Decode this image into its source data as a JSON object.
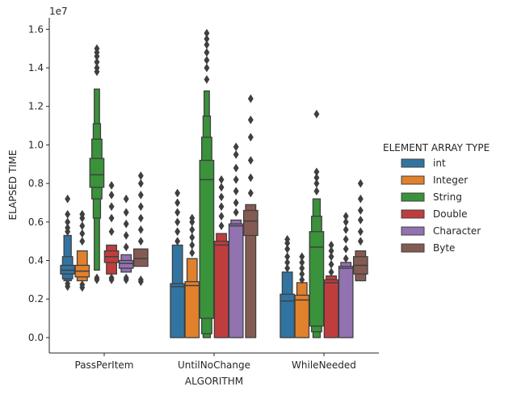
{
  "chart_data": {
    "type": "boxen",
    "title": "",
    "xlabel": "ALGORITHM",
    "ylabel": "ELAPSED TIME",
    "y_scale_label": "1e7",
    "ylim": [
      -0.08,
      1.66
    ],
    "y_ticks": [
      0.0,
      0.2,
      0.4,
      0.6,
      0.8,
      1.0,
      1.2,
      1.4,
      1.6
    ],
    "y_tick_labels": [
      "0.0",
      "0.2",
      "0.4",
      "0.6",
      "0.8",
      "1.0",
      "1.2",
      "1.4",
      "1.6"
    ],
    "categories": [
      "PassPerItem",
      "UntilNoChange",
      "WhileNeeded"
    ],
    "legend": {
      "title": "ELEMENT ARRAY TYPE",
      "placement": "right"
    },
    "grid": false,
    "series": [
      {
        "name": "int",
        "color": "#3274a1",
        "groups": [
          {
            "levels": [
              [
                3.3,
                3.75
              ],
              [
                3.05,
                4.2
              ],
              [
                2.95,
                5.3
              ]
            ],
            "median": 3.5,
            "outliers": [
              2.65,
              2.8,
              5.5,
              5.7,
              6.0,
              6.4,
              7.2
            ]
          },
          {
            "levels": [
              [
                0.0,
                2.8
              ],
              [
                0.0,
                4.8
              ]
            ],
            "median": 2.65,
            "outliers": [
              5.0,
              5.5,
              6.0,
              6.5,
              7.0,
              7.5
            ]
          },
          {
            "levels": [
              [
                0.0,
                2.25
              ],
              [
                0.0,
                3.4
              ]
            ],
            "median": 1.9,
            "outliers": [
              3.6,
              3.9,
              4.2,
              4.6,
              4.9,
              5.1
            ]
          }
        ]
      },
      {
        "name": "Integer",
        "color": "#e1812c",
        "groups": [
          {
            "levels": [
              [
                3.15,
                3.75
              ],
              [
                2.95,
                4.5
              ]
            ],
            "median": 3.45,
            "outliers": [
              2.6,
              2.75,
              5.0,
              5.4,
              5.8,
              6.2,
              6.4
            ]
          },
          {
            "levels": [
              [
                0.0,
                2.9
              ],
              [
                0.0,
                4.1
              ]
            ],
            "median": 2.7,
            "outliers": [
              4.4,
              4.8,
              5.2,
              5.6,
              6.0,
              6.2
            ]
          },
          {
            "levels": [
              [
                0.0,
                2.2
              ],
              [
                0.0,
                2.85
              ]
            ],
            "median": 1.95,
            "outliers": [
              3.0,
              3.3,
              3.6,
              3.9,
              4.2
            ]
          }
        ]
      },
      {
        "name": "String",
        "color": "#3a923a",
        "groups": [
          {
            "levels": [
              [
                7.8,
                9.3
              ],
              [
                7.2,
                10.3
              ],
              [
                6.2,
                11.1
              ],
              [
                3.5,
                12.9
              ]
            ],
            "median": 8.45,
            "outliers": [
              3.0,
              3.1,
              13.8,
              14.0,
              14.3,
              14.6,
              14.8,
              15.0
            ]
          },
          {
            "levels": [
              [
                1.0,
                9.2
              ],
              [
                0.2,
                10.4
              ],
              [
                0.0,
                11.5
              ],
              [
                0.0,
                12.8
              ]
            ],
            "median": 8.2,
            "outliers": [
              13.4,
              14.0,
              14.4,
              14.8,
              15.2,
              15.5,
              15.8
            ]
          },
          {
            "levels": [
              [
                0.6,
                5.5
              ],
              [
                0.3,
                6.3
              ],
              [
                0.0,
                7.2
              ]
            ],
            "median": 4.7,
            "outliers": [
              7.6,
              8.0,
              8.3,
              8.6,
              11.6
            ]
          }
        ]
      },
      {
        "name": "Double",
        "color": "#c03d3e",
        "groups": [
          {
            "levels": [
              [
                3.9,
                4.5
              ],
              [
                3.3,
                4.8
              ]
            ],
            "median": 4.2,
            "outliers": [
              3.0,
              3.1,
              5.5,
              6.2,
              6.8,
              7.4,
              7.9
            ]
          },
          {
            "levels": [
              [
                0.0,
                5.0
              ],
              [
                0.0,
                5.4
              ]
            ],
            "median": 4.8,
            "outliers": [
              5.8,
              6.3,
              6.8,
              7.3,
              7.8,
              8.2
            ]
          },
          {
            "levels": [
              [
                0.0,
                3.0
              ],
              [
                0.0,
                3.2
              ]
            ],
            "median": 2.85,
            "outliers": [
              3.4,
              3.8,
              4.2,
              4.5,
              4.8
            ]
          }
        ]
      },
      {
        "name": "Character",
        "color": "#9372b2",
        "groups": [
          {
            "levels": [
              [
                3.6,
                4.0
              ],
              [
                3.4,
                4.3
              ]
            ],
            "median": 3.85,
            "outliers": [
              3.0,
              3.1,
              4.7,
              5.3,
              5.9,
              6.5,
              7.2
            ]
          },
          {
            "levels": [
              [
                0.0,
                5.9
              ],
              [
                0.0,
                6.1
              ]
            ],
            "median": 5.8,
            "outliers": [
              6.5,
              7.0,
              7.6,
              8.2,
              8.8,
              9.5,
              9.9
            ]
          },
          {
            "levels": [
              [
                0.0,
                3.7
              ],
              [
                0.0,
                3.9
              ]
            ],
            "median": 3.6,
            "outliers": [
              4.1,
              4.6,
              5.1,
              5.6,
              6.0,
              6.3
            ]
          }
        ]
      },
      {
        "name": "Byte",
        "color": "#845b53",
        "groups": [
          {
            "levels": [
              [
                3.7,
                4.6
              ]
            ],
            "median": 4.1,
            "outliers": [
              2.9,
              3.0,
              5.0,
              5.6,
              6.2,
              6.8,
              7.4,
              8.0,
              8.4
            ]
          },
          {
            "levels": [
              [
                5.3,
                6.6
              ],
              [
                0.0,
                6.9
              ]
            ],
            "median": 6.05,
            "outliers": [
              7.5,
              8.3,
              9.2,
              10.4,
              11.3,
              12.4
            ]
          },
          {
            "levels": [
              [
                3.3,
                4.2
              ],
              [
                2.95,
                4.5
              ]
            ],
            "median": 3.75,
            "outliers": [
              5.0,
              5.5,
              6.1,
              6.6,
              7.2,
              8.0
            ]
          }
        ]
      }
    ]
  }
}
